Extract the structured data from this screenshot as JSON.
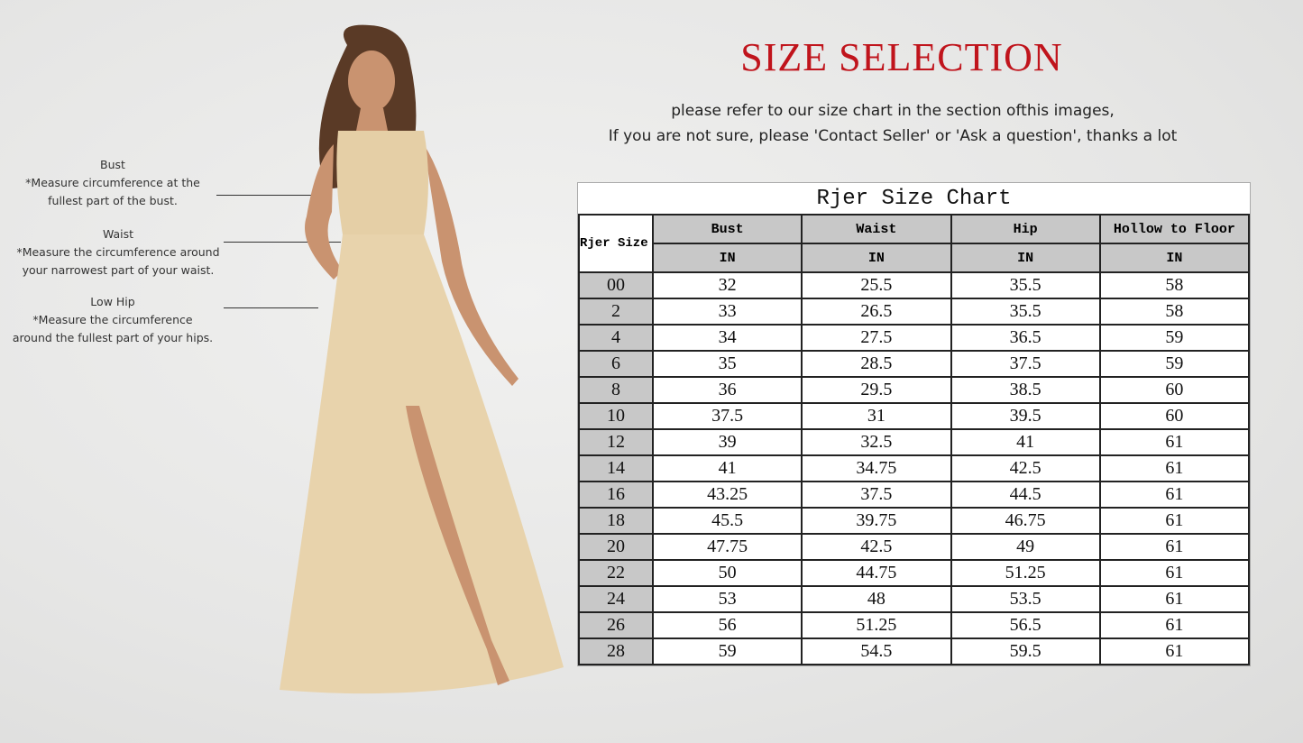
{
  "header": {
    "title": "SIZE SELECTION",
    "subtitle_line1": "please refer to our size chart in the section ofthis images,",
    "subtitle_line2": "If you are not sure, please 'Contact Seller' or 'Ask a question', thanks a lot"
  },
  "measurements": [
    {
      "label": "Bust",
      "desc1": "*Measure circumference at the",
      "desc2": "fullest part of the bust."
    },
    {
      "label": "Waist",
      "desc1": "*Measure the circumference around",
      "desc2": "your narrowest part of your waist."
    },
    {
      "label": "Low Hip",
      "desc1": "*Measure the circumference",
      "desc2": "around the fullest part of your hips."
    }
  ],
  "colors": {
    "title": "#c0141c",
    "dress": "#e8d3ac",
    "header_bg": "#c8c8c8"
  },
  "size_chart": {
    "title": "Rjer Size Chart",
    "size_header": "Rjer Size",
    "columns": [
      "Bust",
      "Waist",
      "Hip",
      "Hollow to Floor"
    ],
    "units": [
      "IN",
      "IN",
      "IN",
      "IN"
    ],
    "rows": [
      [
        "00",
        "32",
        "25.5",
        "35.5",
        "58"
      ],
      [
        "2",
        "33",
        "26.5",
        "35.5",
        "58"
      ],
      [
        "4",
        "34",
        "27.5",
        "36.5",
        "59"
      ],
      [
        "6",
        "35",
        "28.5",
        "37.5",
        "59"
      ],
      [
        "8",
        "36",
        "29.5",
        "38.5",
        "60"
      ],
      [
        "10",
        "37.5",
        "31",
        "39.5",
        "60"
      ],
      [
        "12",
        "39",
        "32.5",
        "41",
        "61"
      ],
      [
        "14",
        "41",
        "34.75",
        "42.5",
        "61"
      ],
      [
        "16",
        "43.25",
        "37.5",
        "44.5",
        "61"
      ],
      [
        "18",
        "45.5",
        "39.75",
        "46.75",
        "61"
      ],
      [
        "20",
        "47.75",
        "42.5",
        "49",
        "61"
      ],
      [
        "22",
        "50",
        "44.75",
        "51.25",
        "61"
      ],
      [
        "24",
        "53",
        "48",
        "53.5",
        "61"
      ],
      [
        "26",
        "56",
        "51.25",
        "56.5",
        "61"
      ],
      [
        "28",
        "59",
        "54.5",
        "59.5",
        "61"
      ]
    ]
  }
}
